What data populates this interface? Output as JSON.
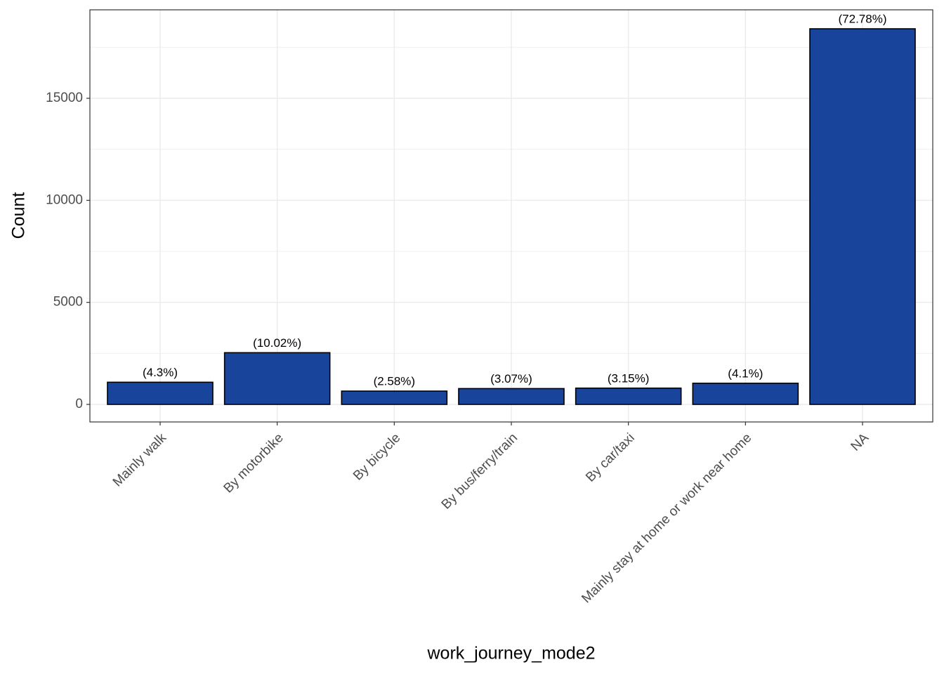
{
  "chart_data": {
    "type": "bar",
    "x_label": "work_journey_mode2",
    "y_label": "Count",
    "categories": [
      "Mainly walk",
      "By motorbike",
      "By bicycle",
      "By bus/ferry/train",
      "By car/taxi",
      "Mainly stay at home or work near home",
      "NA"
    ],
    "values": [
      1087,
      2534,
      652,
      776,
      797,
      1037,
      18406
    ],
    "bar_labels": [
      "(4.3%)",
      "(10.02%)",
      "(2.58%)",
      "(3.07%)",
      "(3.15%)",
      "(4.1%)",
      "(72.78%)"
    ],
    "color": "#19449b",
    "ylim": [
      -860,
      19335
    ],
    "yticks": [
      0,
      5000,
      10000,
      15000
    ],
    "y_minor_grid": [
      2500,
      7500,
      12500,
      17500
    ],
    "grid": true
  }
}
